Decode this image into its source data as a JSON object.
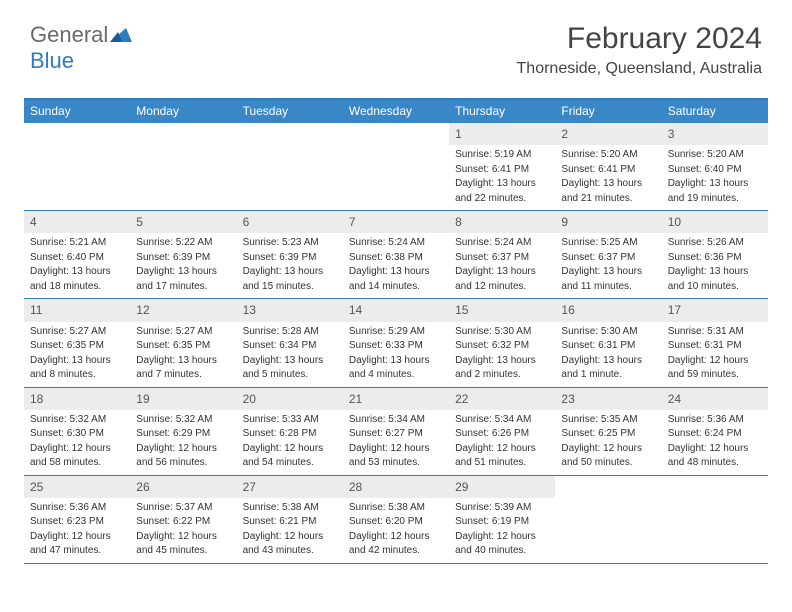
{
  "brand": {
    "part1": "General",
    "part2": "Blue"
  },
  "title": "February 2024",
  "location": "Thorneside, Queensland, Australia",
  "colors": {
    "header_bar": "#3a87c8",
    "border": "#2f7bbf",
    "daynum_bg": "#ececec",
    "text": "#333333"
  },
  "dow": [
    "Sunday",
    "Monday",
    "Tuesday",
    "Wednesday",
    "Thursday",
    "Friday",
    "Saturday"
  ],
  "weeks": [
    [
      {
        "n": "",
        "empty": true
      },
      {
        "n": "",
        "empty": true
      },
      {
        "n": "",
        "empty": true
      },
      {
        "n": "",
        "empty": true
      },
      {
        "n": "1",
        "sr": "Sunrise: 5:19 AM",
        "ss": "Sunset: 6:41 PM",
        "dl1": "Daylight: 13 hours",
        "dl2": "and 22 minutes."
      },
      {
        "n": "2",
        "sr": "Sunrise: 5:20 AM",
        "ss": "Sunset: 6:41 PM",
        "dl1": "Daylight: 13 hours",
        "dl2": "and 21 minutes."
      },
      {
        "n": "3",
        "sr": "Sunrise: 5:20 AM",
        "ss": "Sunset: 6:40 PM",
        "dl1": "Daylight: 13 hours",
        "dl2": "and 19 minutes."
      }
    ],
    [
      {
        "n": "4",
        "sr": "Sunrise: 5:21 AM",
        "ss": "Sunset: 6:40 PM",
        "dl1": "Daylight: 13 hours",
        "dl2": "and 18 minutes."
      },
      {
        "n": "5",
        "sr": "Sunrise: 5:22 AM",
        "ss": "Sunset: 6:39 PM",
        "dl1": "Daylight: 13 hours",
        "dl2": "and 17 minutes."
      },
      {
        "n": "6",
        "sr": "Sunrise: 5:23 AM",
        "ss": "Sunset: 6:39 PM",
        "dl1": "Daylight: 13 hours",
        "dl2": "and 15 minutes."
      },
      {
        "n": "7",
        "sr": "Sunrise: 5:24 AM",
        "ss": "Sunset: 6:38 PM",
        "dl1": "Daylight: 13 hours",
        "dl2": "and 14 minutes."
      },
      {
        "n": "8",
        "sr": "Sunrise: 5:24 AM",
        "ss": "Sunset: 6:37 PM",
        "dl1": "Daylight: 13 hours",
        "dl2": "and 12 minutes."
      },
      {
        "n": "9",
        "sr": "Sunrise: 5:25 AM",
        "ss": "Sunset: 6:37 PM",
        "dl1": "Daylight: 13 hours",
        "dl2": "and 11 minutes."
      },
      {
        "n": "10",
        "sr": "Sunrise: 5:26 AM",
        "ss": "Sunset: 6:36 PM",
        "dl1": "Daylight: 13 hours",
        "dl2": "and 10 minutes."
      }
    ],
    [
      {
        "n": "11",
        "sr": "Sunrise: 5:27 AM",
        "ss": "Sunset: 6:35 PM",
        "dl1": "Daylight: 13 hours",
        "dl2": "and 8 minutes."
      },
      {
        "n": "12",
        "sr": "Sunrise: 5:27 AM",
        "ss": "Sunset: 6:35 PM",
        "dl1": "Daylight: 13 hours",
        "dl2": "and 7 minutes."
      },
      {
        "n": "13",
        "sr": "Sunrise: 5:28 AM",
        "ss": "Sunset: 6:34 PM",
        "dl1": "Daylight: 13 hours",
        "dl2": "and 5 minutes."
      },
      {
        "n": "14",
        "sr": "Sunrise: 5:29 AM",
        "ss": "Sunset: 6:33 PM",
        "dl1": "Daylight: 13 hours",
        "dl2": "and 4 minutes."
      },
      {
        "n": "15",
        "sr": "Sunrise: 5:30 AM",
        "ss": "Sunset: 6:32 PM",
        "dl1": "Daylight: 13 hours",
        "dl2": "and 2 minutes."
      },
      {
        "n": "16",
        "sr": "Sunrise: 5:30 AM",
        "ss": "Sunset: 6:31 PM",
        "dl1": "Daylight: 13 hours",
        "dl2": "and 1 minute."
      },
      {
        "n": "17",
        "sr": "Sunrise: 5:31 AM",
        "ss": "Sunset: 6:31 PM",
        "dl1": "Daylight: 12 hours",
        "dl2": "and 59 minutes."
      }
    ],
    [
      {
        "n": "18",
        "sr": "Sunrise: 5:32 AM",
        "ss": "Sunset: 6:30 PM",
        "dl1": "Daylight: 12 hours",
        "dl2": "and 58 minutes."
      },
      {
        "n": "19",
        "sr": "Sunrise: 5:32 AM",
        "ss": "Sunset: 6:29 PM",
        "dl1": "Daylight: 12 hours",
        "dl2": "and 56 minutes."
      },
      {
        "n": "20",
        "sr": "Sunrise: 5:33 AM",
        "ss": "Sunset: 6:28 PM",
        "dl1": "Daylight: 12 hours",
        "dl2": "and 54 minutes."
      },
      {
        "n": "21",
        "sr": "Sunrise: 5:34 AM",
        "ss": "Sunset: 6:27 PM",
        "dl1": "Daylight: 12 hours",
        "dl2": "and 53 minutes."
      },
      {
        "n": "22",
        "sr": "Sunrise: 5:34 AM",
        "ss": "Sunset: 6:26 PM",
        "dl1": "Daylight: 12 hours",
        "dl2": "and 51 minutes."
      },
      {
        "n": "23",
        "sr": "Sunrise: 5:35 AM",
        "ss": "Sunset: 6:25 PM",
        "dl1": "Daylight: 12 hours",
        "dl2": "and 50 minutes."
      },
      {
        "n": "24",
        "sr": "Sunrise: 5:36 AM",
        "ss": "Sunset: 6:24 PM",
        "dl1": "Daylight: 12 hours",
        "dl2": "and 48 minutes."
      }
    ],
    [
      {
        "n": "25",
        "sr": "Sunrise: 5:36 AM",
        "ss": "Sunset: 6:23 PM",
        "dl1": "Daylight: 12 hours",
        "dl2": "and 47 minutes."
      },
      {
        "n": "26",
        "sr": "Sunrise: 5:37 AM",
        "ss": "Sunset: 6:22 PM",
        "dl1": "Daylight: 12 hours",
        "dl2": "and 45 minutes."
      },
      {
        "n": "27",
        "sr": "Sunrise: 5:38 AM",
        "ss": "Sunset: 6:21 PM",
        "dl1": "Daylight: 12 hours",
        "dl2": "and 43 minutes."
      },
      {
        "n": "28",
        "sr": "Sunrise: 5:38 AM",
        "ss": "Sunset: 6:20 PM",
        "dl1": "Daylight: 12 hours",
        "dl2": "and 42 minutes."
      },
      {
        "n": "29",
        "sr": "Sunrise: 5:39 AM",
        "ss": "Sunset: 6:19 PM",
        "dl1": "Daylight: 12 hours",
        "dl2": "and 40 minutes."
      },
      {
        "n": "",
        "empty": true
      },
      {
        "n": "",
        "empty": true
      }
    ]
  ]
}
